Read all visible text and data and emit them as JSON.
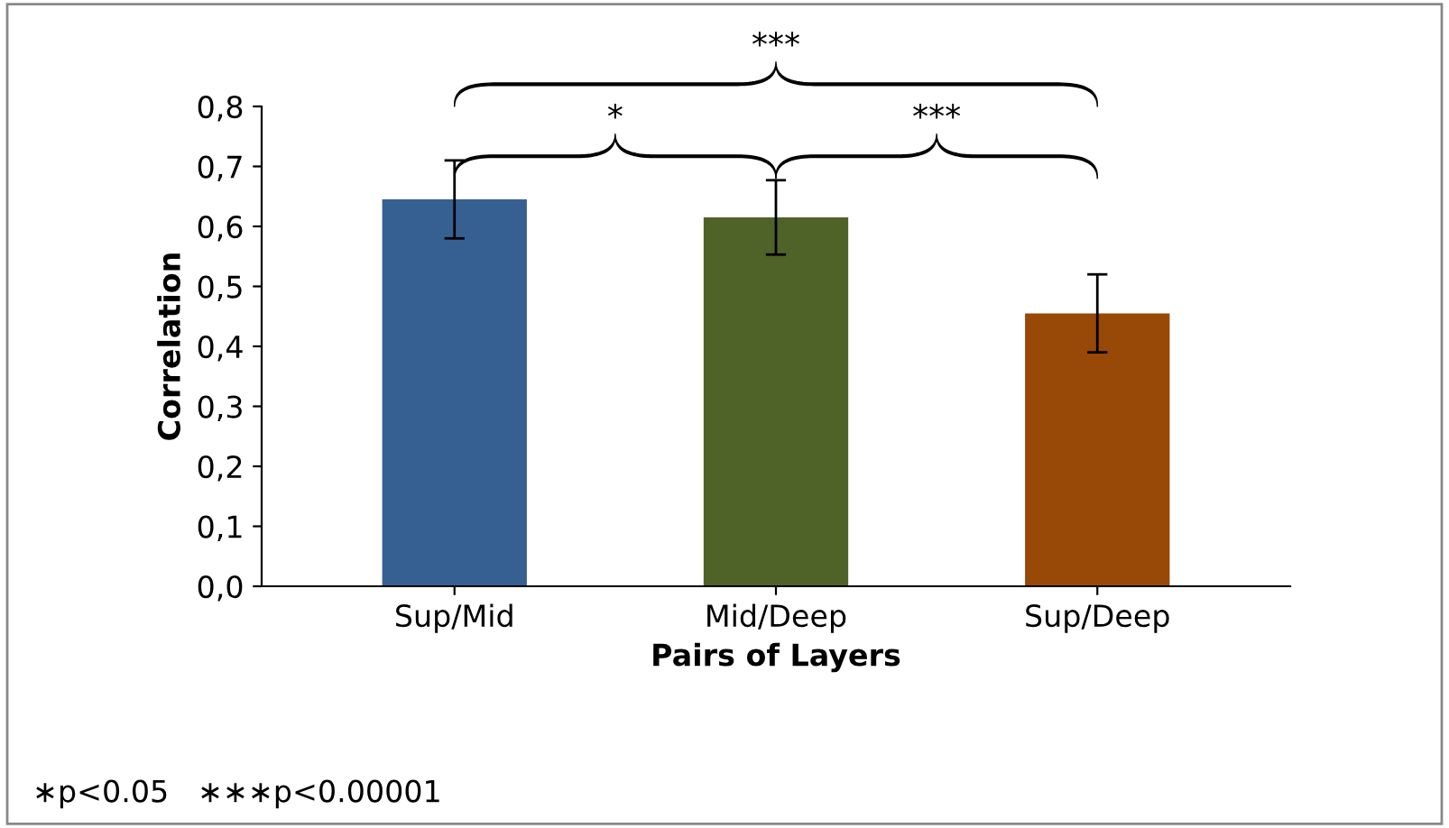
{
  "chart_data": {
    "type": "bar",
    "xlabel": "Pairs of Layers",
    "ylabel": "Correlation",
    "categories": [
      "Sup/Mid",
      "Mid/Deep",
      "Sup/Deep"
    ],
    "values": [
      0.645,
      0.615,
      0.455
    ],
    "errors": [
      0.065,
      0.062,
      0.065
    ],
    "colors": [
      "#376092",
      "#4f6228",
      "#984807"
    ],
    "ylim": [
      0,
      0.8
    ],
    "yticks": [
      {
        "value": 0,
        "label": "0,0"
      },
      {
        "value": 0.1,
        "label": "0,1"
      },
      {
        "value": 0.2,
        "label": "0,2"
      },
      {
        "value": 0.3,
        "label": "0,3"
      },
      {
        "value": 0.4,
        "label": "0,4"
      },
      {
        "value": 0.5,
        "label": "0,5"
      },
      {
        "value": 0.6,
        "label": "0,6"
      },
      {
        "value": 0.7,
        "label": "0,7"
      },
      {
        "value": 0.8,
        "label": "0,8"
      }
    ],
    "grid": false,
    "legend": false,
    "annotations": [
      "*",
      "***",
      "***",
      "∗p<0.05   ∗∗∗p<0.00001"
    ]
  }
}
